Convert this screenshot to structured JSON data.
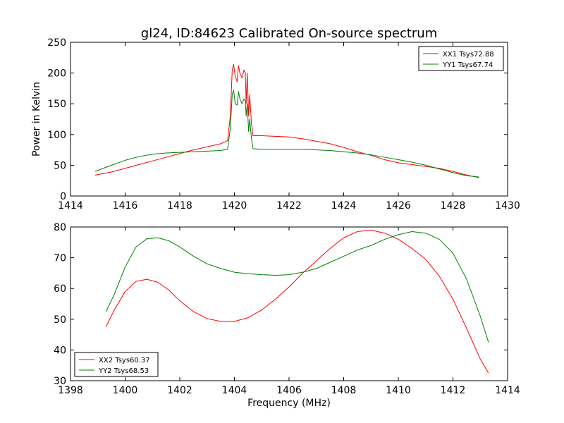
{
  "page": {
    "title": "gl24, ID:84623 Calibrated On-source spectrum"
  },
  "chart_data": [
    {
      "type": "line",
      "ylabel": "Power in Kelvin",
      "xlabel": "",
      "xlim": [
        1414,
        1430
      ],
      "ylim": [
        0,
        250
      ],
      "xticks": [
        "1414",
        "1416",
        "1418",
        "1420",
        "1422",
        "1424",
        "1426",
        "1428",
        "1430"
      ],
      "yticks": [
        "0",
        "50",
        "100",
        "150",
        "200",
        "250"
      ],
      "legend_position": "upper right",
      "series": [
        {
          "name": "XX1 Tsys72.88",
          "color": "#ff0000",
          "points": [
            [
              1414.9,
              34
            ],
            [
              1415.5,
              39
            ],
            [
              1416,
              45
            ],
            [
              1416.5,
              51
            ],
            [
              1417,
              57
            ],
            [
              1417.5,
              63
            ],
            [
              1418,
              69
            ],
            [
              1418.5,
              75
            ],
            [
              1419,
              80
            ],
            [
              1419.5,
              85
            ],
            [
              1419.75,
              90
            ],
            [
              1419.85,
              130
            ],
            [
              1419.92,
              205
            ],
            [
              1419.97,
              214
            ],
            [
              1420.03,
              195
            ],
            [
              1420.1,
              186
            ],
            [
              1420.15,
              212
            ],
            [
              1420.2,
              200
            ],
            [
              1420.28,
              192
            ],
            [
              1420.35,
              205
            ],
            [
              1420.4,
              201
            ],
            [
              1420.43,
              150
            ],
            [
              1420.47,
              200
            ],
            [
              1420.52,
              130
            ],
            [
              1420.56,
              165
            ],
            [
              1420.62,
              120
            ],
            [
              1420.68,
              98
            ],
            [
              1421,
              98
            ],
            [
              1421.5,
              97
            ],
            [
              1422,
              96
            ],
            [
              1422.5,
              93
            ],
            [
              1423,
              89
            ],
            [
              1423.5,
              85
            ],
            [
              1424,
              79
            ],
            [
              1424.5,
              72
            ],
            [
              1425,
              66
            ],
            [
              1425.5,
              59
            ],
            [
              1426,
              54
            ],
            [
              1426.5,
              51
            ],
            [
              1427,
              48
            ],
            [
              1427.5,
              45
            ],
            [
              1428,
              40
            ],
            [
              1428.5,
              34
            ],
            [
              1428.95,
              30
            ]
          ]
        },
        {
          "name": "YY1 Tsys67.74",
          "color": "#008000",
          "points": [
            [
              1414.9,
              40
            ],
            [
              1415.5,
              50
            ],
            [
              1416,
              58
            ],
            [
              1416.5,
              64
            ],
            [
              1417,
              68
            ],
            [
              1417.5,
              70
            ],
            [
              1418,
              71
            ],
            [
              1418.5,
              72
            ],
            [
              1419,
              73
            ],
            [
              1419.5,
              74
            ],
            [
              1419.75,
              76
            ],
            [
              1419.85,
              110
            ],
            [
              1419.92,
              165
            ],
            [
              1419.97,
              172
            ],
            [
              1420.03,
              150
            ],
            [
              1420.1,
              148
            ],
            [
              1420.15,
              170
            ],
            [
              1420.2,
              158
            ],
            [
              1420.28,
              150
            ],
            [
              1420.35,
              158
            ],
            [
              1420.4,
              155
            ],
            [
              1420.43,
              130
            ],
            [
              1420.47,
              150
            ],
            [
              1420.52,
              105
            ],
            [
              1420.56,
              125
            ],
            [
              1420.62,
              95
            ],
            [
              1420.68,
              77
            ],
            [
              1421,
              76
            ],
            [
              1421.5,
              76
            ],
            [
              1422,
              76
            ],
            [
              1422.5,
              76
            ],
            [
              1423,
              75
            ],
            [
              1423.5,
              74
            ],
            [
              1424,
              72
            ],
            [
              1424.5,
              70
            ],
            [
              1425,
              67
            ],
            [
              1425.5,
              63
            ],
            [
              1426,
              59
            ],
            [
              1426.5,
              55
            ],
            [
              1427,
              50
            ],
            [
              1427.5,
              44
            ],
            [
              1428,
              38
            ],
            [
              1428.5,
              33
            ],
            [
              1428.95,
              31
            ]
          ]
        }
      ]
    },
    {
      "type": "line",
      "xlabel": "Frequency (MHz)",
      "ylabel": "",
      "xlim": [
        1398,
        1414
      ],
      "ylim": [
        30,
        80
      ],
      "xticks": [
        "1398",
        "1400",
        "1402",
        "1404",
        "1406",
        "1408",
        "1410",
        "1412",
        "1414"
      ],
      "yticks": [
        "30",
        "40",
        "50",
        "60",
        "70",
        "80"
      ],
      "legend_position": "lower left",
      "series": [
        {
          "name": "XX2 Tsys60.37",
          "color": "#ff0000",
          "points": [
            [
              1399.3,
              47.5
            ],
            [
              1399.6,
              53
            ],
            [
              1400,
              59
            ],
            [
              1400.4,
              62.3
            ],
            [
              1400.8,
              63
            ],
            [
              1401.2,
              62
            ],
            [
              1401.6,
              59.5
            ],
            [
              1402,
              56
            ],
            [
              1402.5,
              52.5
            ],
            [
              1403,
              50.2
            ],
            [
              1403.5,
              49.3
            ],
            [
              1404,
              49.3
            ],
            [
              1404.5,
              50.5
            ],
            [
              1405,
              53
            ],
            [
              1405.5,
              56.5
            ],
            [
              1406,
              60.5
            ],
            [
              1406.5,
              65
            ],
            [
              1407,
              69
            ],
            [
              1407.5,
              73
            ],
            [
              1408,
              76.5
            ],
            [
              1408.5,
              78.5
            ],
            [
              1409,
              79
            ],
            [
              1409.5,
              78
            ],
            [
              1410,
              76
            ],
            [
              1410.5,
              73
            ],
            [
              1411,
              69.5
            ],
            [
              1411.5,
              64
            ],
            [
              1412,
              56.5
            ],
            [
              1412.5,
              47
            ],
            [
              1413,
              37
            ],
            [
              1413.3,
              32.5
            ]
          ]
        },
        {
          "name": "YY2 Tsys68.53",
          "color": "#008000",
          "points": [
            [
              1399.3,
              52.5
            ],
            [
              1399.6,
              58
            ],
            [
              1400,
              67
            ],
            [
              1400.4,
              73.5
            ],
            [
              1400.8,
              76.2
            ],
            [
              1401.2,
              76.5
            ],
            [
              1401.6,
              75.5
            ],
            [
              1402,
              73.5
            ],
            [
              1402.5,
              70.5
            ],
            [
              1403,
              68
            ],
            [
              1403.5,
              66.5
            ],
            [
              1404,
              65.3
            ],
            [
              1404.5,
              64.8
            ],
            [
              1405,
              64.5
            ],
            [
              1405.5,
              64.3
            ],
            [
              1406,
              64.5
            ],
            [
              1406.5,
              65.3
            ],
            [
              1407,
              66.5
            ],
            [
              1407.5,
              68.5
            ],
            [
              1408,
              70.5
            ],
            [
              1408.5,
              72.5
            ],
            [
              1409,
              74
            ],
            [
              1409.5,
              76
            ],
            [
              1410,
              77.5
            ],
            [
              1410.5,
              78.5
            ],
            [
              1411,
              78
            ],
            [
              1411.5,
              76
            ],
            [
              1412,
              71.5
            ],
            [
              1412.5,
              63
            ],
            [
              1413,
              51
            ],
            [
              1413.3,
              42.5
            ]
          ]
        }
      ]
    }
  ]
}
